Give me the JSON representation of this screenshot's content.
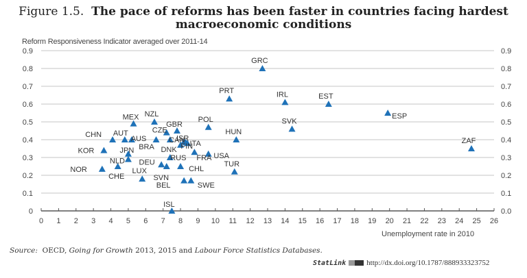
{
  "figure": {
    "number": "Figure 1.5.",
    "title_line1": "The pace of reforms has been faster in countries facing hardest",
    "title_line2": "macroeconomic conditions",
    "source_prefix": "Source:",
    "source_org": "OECD,",
    "source_pub": "Going for Growth",
    "source_years": "2013, 2015 and",
    "source_db": "Labour Force Statistics Databases.",
    "statlink_label": "StatLink",
    "statlink_url": "http://dx.doi.org/10.1787/888933323752"
  },
  "colors": {
    "marker": "#1f72b8",
    "grid": "#d0d0d0",
    "axis": "#555555"
  },
  "chart_data": {
    "type": "scatter",
    "title": "The pace of reforms has been faster in countries facing hardest macroeconomic conditions",
    "xlabel": "Unemployment rate in 2010",
    "ylabel": "Reform Responsiveness Indicator averaged over 2011-14",
    "xlim": [
      0,
      26
    ],
    "ylim": [
      0,
      0.9
    ],
    "xticks": [
      "0",
      "1",
      "2",
      "3",
      "4",
      "5",
      "6",
      "7",
      "8",
      "9",
      "10",
      "11",
      "12",
      "13",
      "14",
      "15",
      "16",
      "17",
      "18",
      "19",
      "20",
      "21",
      "22",
      "23",
      "24",
      "25",
      "26"
    ],
    "yticks_left": [
      "0",
      "0.1",
      "0.2",
      "0.3",
      "0.4",
      "0.5",
      "0.6",
      "0.7",
      "0.8",
      "0.9"
    ],
    "yticks_right": [
      "0.0",
      "0.1",
      "0.2",
      "0.3",
      "0.4",
      "0.5",
      "0.6",
      "0.7",
      "0.8",
      "0.9"
    ],
    "grid": true,
    "marker": "triangle",
    "points": [
      {
        "label": "NOR",
        "x": 3.5,
        "y": 0.235
      },
      {
        "label": "CHE",
        "x": 4.4,
        "y": 0.25
      },
      {
        "label": "KOR",
        "x": 3.6,
        "y": 0.34
      },
      {
        "label": "CHN",
        "x": 4.1,
        "y": 0.4
      },
      {
        "label": "AUT",
        "x": 4.8,
        "y": 0.4
      },
      {
        "label": "AUS",
        "x": 5.2,
        "y": 0.4
      },
      {
        "label": "MEX",
        "x": 5.3,
        "y": 0.49
      },
      {
        "label": "NZL",
        "x": 6.5,
        "y": 0.5
      },
      {
        "label": "JPN",
        "x": 5.0,
        "y": 0.32
      },
      {
        "label": "NLD",
        "x": 5.0,
        "y": 0.29
      },
      {
        "label": "LUX",
        "x": 5.8,
        "y": 0.18
      },
      {
        "label": "BRA",
        "x": 6.6,
        "y": 0.4
      },
      {
        "label": "CZE",
        "x": 7.2,
        "y": 0.44
      },
      {
        "label": "GBR",
        "x": 7.8,
        "y": 0.45
      },
      {
        "label": "CAN",
        "x": 7.4,
        "y": 0.4
      },
      {
        "label": "DNK",
        "x": 8.0,
        "y": 0.37
      },
      {
        "label": "ISR",
        "x": 8.2,
        "y": 0.39
      },
      {
        "label": "FIN",
        "x": 8.4,
        "y": 0.38
      },
      {
        "label": "ITA",
        "x": 8.3,
        "y": 0.385
      },
      {
        "label": "FRA",
        "x": 8.8,
        "y": 0.33
      },
      {
        "label": "USA",
        "x": 9.6,
        "y": 0.32
      },
      {
        "label": "RUS",
        "x": 7.4,
        "y": 0.3
      },
      {
        "label": "DEU",
        "x": 6.9,
        "y": 0.26
      },
      {
        "label": "SVN",
        "x": 7.2,
        "y": 0.25
      },
      {
        "label": "CHL",
        "x": 8.0,
        "y": 0.25
      },
      {
        "label": "BEL",
        "x": 8.2,
        "y": 0.17
      },
      {
        "label": "SWE",
        "x": 8.6,
        "y": 0.17
      },
      {
        "label": "ISL",
        "x": 7.5,
        "y": 0.0
      },
      {
        "label": "POL",
        "x": 9.6,
        "y": 0.47
      },
      {
        "label": "HUN",
        "x": 11.2,
        "y": 0.4
      },
      {
        "label": "TUR",
        "x": 11.1,
        "y": 0.22
      },
      {
        "label": "PRT",
        "x": 10.8,
        "y": 0.63
      },
      {
        "label": "GRC",
        "x": 12.7,
        "y": 0.8
      },
      {
        "label": "IRL",
        "x": 14.0,
        "y": 0.61
      },
      {
        "label": "SVK",
        "x": 14.4,
        "y": 0.46
      },
      {
        "label": "EST",
        "x": 16.5,
        "y": 0.6
      },
      {
        "label": "ESP",
        "x": 19.9,
        "y": 0.55
      },
      {
        "label": "ZAF",
        "x": 24.7,
        "y": 0.35
      }
    ]
  }
}
